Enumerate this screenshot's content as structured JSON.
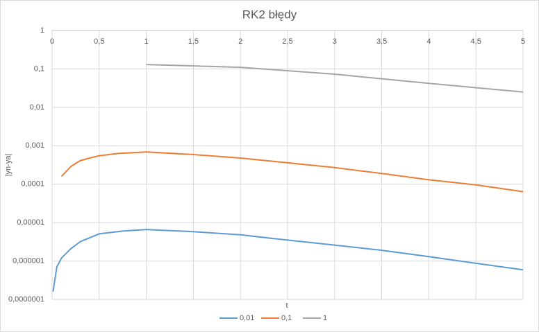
{
  "chart_data": {
    "type": "line",
    "title": "RK2 błędy",
    "x_label": "t",
    "y_label": "|yn-ya|",
    "y_scale": "log",
    "grid": true,
    "legend": "bottom",
    "xlim": [
      0,
      5
    ],
    "xticks": [
      0,
      {
        "value": 0.5,
        "label": "0,5"
      },
      1,
      {
        "value": 1.5,
        "label": "1,5"
      },
      2,
      {
        "value": 2.5,
        "label": "2,5"
      },
      3,
      {
        "value": 3.5,
        "label": "3,5"
      },
      4,
      {
        "value": 4.5,
        "label": "4,5"
      },
      5
    ],
    "ylim": [
      1e-07,
      1
    ],
    "yticks": [
      {
        "value": 1e-07,
        "label": "0,0000001"
      },
      {
        "value": 1e-06,
        "label": "0,000001"
      },
      {
        "value": 1e-05,
        "label": "0,00001"
      },
      {
        "value": 0.0001,
        "label": "0,0001"
      },
      {
        "value": 0.001,
        "label": "0,001"
      },
      {
        "value": 0.01,
        "label": "0,01"
      },
      {
        "value": 0.1,
        "label": "0,1"
      },
      1
    ],
    "series": [
      {
        "name": "0,01",
        "color": "#5b9bd5",
        "x": [
          0.01,
          0.05,
          0.1,
          0.2,
          0.3,
          0.5,
          0.75,
          1,
          1.5,
          2,
          2.5,
          3,
          3.5,
          4,
          4.5,
          5
        ],
        "values": [
          1.6e-07,
          7e-07,
          1.2e-06,
          2.1e-06,
          3.2e-06,
          5.1e-06,
          6e-06,
          6.6e-06,
          5.8e-06,
          4.8e-06,
          3.5e-06,
          2.6e-06,
          1.9e-06,
          1.3e-06,
          8.7e-07,
          5.9e-07
        ]
      },
      {
        "name": "0,1",
        "color": "#ed7d31",
        "x": [
          0.1,
          0.2,
          0.3,
          0.4,
          0.5,
          0.7,
          1,
          1.5,
          2,
          2.5,
          3,
          3.5,
          4,
          4.5,
          5
        ],
        "values": [
          0.00016,
          0.00029,
          0.00041,
          0.00048,
          0.00055,
          0.00063,
          0.00069,
          0.00059,
          0.00048,
          0.00036,
          0.00027,
          0.00019,
          0.00013,
          9.6e-05,
          6.4e-05
        ]
      },
      {
        "name": "1",
        "color": "#a5a5a5",
        "x": [
          1,
          2,
          3,
          4,
          5
        ],
        "values": [
          0.13,
          0.11,
          0.073,
          0.042,
          0.025
        ]
      }
    ]
  }
}
